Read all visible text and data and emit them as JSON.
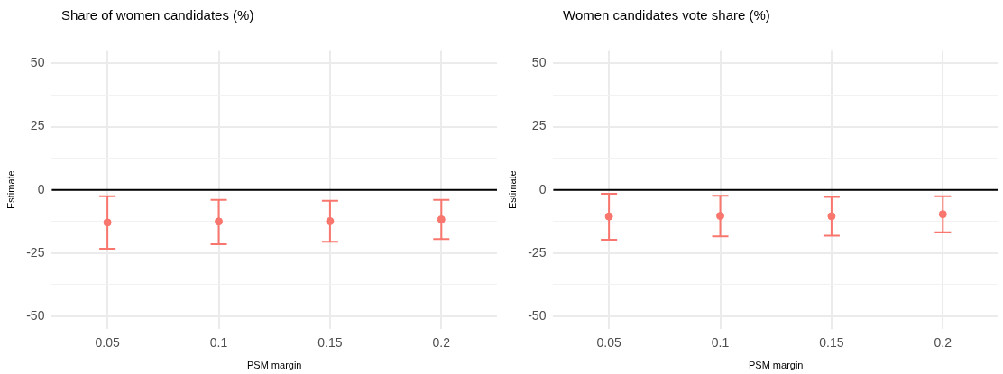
{
  "chart_data": [
    {
      "type": "scatter",
      "title": "Share of women candidates (%)",
      "xlabel": "PSM margin",
      "ylabel": "Estimate",
      "categories": [
        "0.05",
        "0.1",
        "0.15",
        "0.2"
      ],
      "series": [
        {
          "color": "#f8766d",
          "values": [
            -12.9,
            -12.5,
            -12.4,
            -11.7
          ],
          "errors": [
            [
              -23.3,
              -2.5
            ],
            [
              -21.5,
              -3.9
            ],
            [
              -20.5,
              -4.3
            ],
            [
              -19.4,
              -3.9
            ]
          ]
        }
      ],
      "ylim": [
        -55,
        55
      ],
      "yticks": [
        -50,
        {
          "value": -37.5,
          "label": null
        },
        -25,
        {
          "value": -12.5,
          "label": null
        },
        0,
        {
          "value": 12.5,
          "label": null
        },
        25,
        {
          "value": 37.5,
          "label": null
        },
        50
      ],
      "ref_lines": [
        {
          "axis": "y",
          "value": 0,
          "color": "#000000"
        }
      ],
      "grid": true,
      "marker": "circle",
      "legend": false
    },
    {
      "type": "scatter",
      "title": "Women candidates vote share (%)",
      "xlabel": "PSM margin",
      "ylabel": "Estimate",
      "categories": [
        "0.05",
        "0.1",
        "0.15",
        "0.2"
      ],
      "series": [
        {
          "color": "#f8766d",
          "values": [
            -10.5,
            -10.3,
            -10.4,
            -9.6
          ],
          "errors": [
            [
              -19.7,
              -1.5
            ],
            [
              -18.4,
              -2.3
            ],
            [
              -18.1,
              -2.8
            ],
            [
              -16.8,
              -2.5
            ]
          ]
        }
      ],
      "ylim": [
        -55,
        55
      ],
      "yticks": [
        -50,
        {
          "value": -37.5,
          "label": null
        },
        -25,
        {
          "value": -12.5,
          "label": null
        },
        0,
        {
          "value": 12.5,
          "label": null
        },
        25,
        {
          "value": 37.5,
          "label": null
        },
        50
      ],
      "ref_lines": [
        {
          "axis": "y",
          "value": 0,
          "color": "#000000"
        }
      ],
      "grid": true,
      "marker": "circle",
      "legend": false
    }
  ]
}
